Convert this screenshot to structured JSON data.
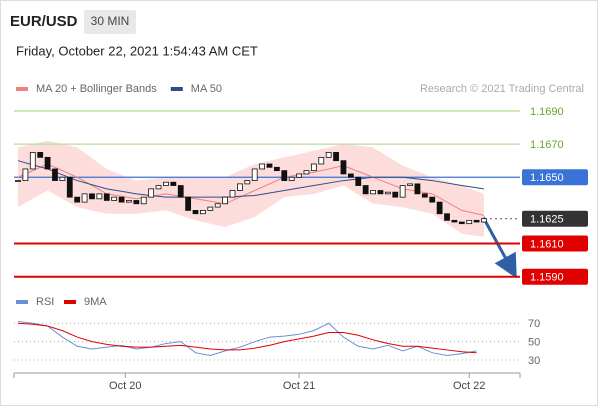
{
  "header": {
    "symbol": "EUR/USD",
    "timeframe": "30 MIN",
    "datetime": "Friday, October 22, 2021 1:54:43 AM CET",
    "credit": "Research © 2021 Trading Central"
  },
  "chart_data": [
    {
      "type": "candlestick",
      "legend": [
        {
          "name": "MA 20 + Bollinger Bands",
          "color": "#f08080"
        },
        {
          "name": "MA 50",
          "color": "#2b4f8c"
        }
      ],
      "ylim": [
        1.1585,
        1.1696
      ],
      "xlim": [
        0,
        63
      ],
      "xticks": [
        {
          "value": 14.5,
          "label": "Oct 20"
        },
        {
          "value": 38,
          "label": "Oct 21"
        },
        {
          "value": 61,
          "label": "Oct 22"
        }
      ],
      "closes": [
        1.1648,
        1.1655,
        1.1665,
        1.1662,
        1.1655,
        1.1648,
        1.165,
        1.1638,
        1.1635,
        1.164,
        1.1637,
        1.164,
        1.1636,
        1.1638,
        1.1635,
        1.1636,
        1.1634,
        1.1638,
        1.1643,
        1.1645,
        1.1647,
        1.1645,
        1.1638,
        1.163,
        1.1628,
        1.163,
        1.1632,
        1.1634,
        1.1638,
        1.1642,
        1.1646,
        1.1648,
        1.1655,
        1.1658,
        1.1656,
        1.1654,
        1.1648,
        1.165,
        1.1652,
        1.1654,
        1.1658,
        1.1662,
        1.1665,
        1.166,
        1.1652,
        1.165,
        1.1645,
        1.164,
        1.1642,
        1.164,
        1.1641,
        1.1638,
        1.1645,
        1.1646,
        1.164,
        1.1638,
        1.1635,
        1.1628,
        1.1624,
        1.1623,
        1.1622,
        1.1624,
        1.1623,
        1.1625
      ],
      "band_x": [
        0,
        4,
        8,
        12,
        16,
        20,
        24,
        28,
        32,
        36,
        40,
        44,
        48,
        52,
        56,
        60,
        63
      ],
      "band_upper": [
        1.1668,
        1.1672,
        1.1668,
        1.1655,
        1.1648,
        1.165,
        1.165,
        1.165,
        1.1658,
        1.1662,
        1.1666,
        1.167,
        1.1668,
        1.1657,
        1.165,
        1.1645,
        1.164
      ],
      "band_lower": [
        1.1632,
        1.1642,
        1.1632,
        1.1628,
        1.1628,
        1.163,
        1.1624,
        1.162,
        1.1626,
        1.1638,
        1.164,
        1.1645,
        1.1634,
        1.1632,
        1.1628,
        1.1616,
        1.1614
      ],
      "ma20": [
        1.165,
        1.1658,
        1.165,
        1.164,
        1.1637,
        1.164,
        1.1637,
        1.1634,
        1.1642,
        1.165,
        1.1653,
        1.1657,
        1.165,
        1.1643,
        1.164,
        1.163,
        1.1627
      ],
      "ma50": [
        1.166,
        1.1655,
        1.1648,
        1.1643,
        1.164,
        1.1638,
        1.1638,
        1.1638,
        1.1639,
        1.1642,
        1.1645,
        1.1648,
        1.165,
        1.165,
        1.1648,
        1.1645,
        1.1643
      ],
      "levels": [
        {
          "value": 1.169,
          "label": "1.1690",
          "color": "#6aa32e",
          "line": "#b9dc9e",
          "box": false
        },
        {
          "value": 1.167,
          "label": "1.1670",
          "color": "#6aa32e",
          "line": "#b9dc9e",
          "box": false
        },
        {
          "value": 1.165,
          "label": "1.1650",
          "color": "#3a73d6",
          "line": "#3a73d6",
          "box": true
        },
        {
          "value": 1.1625,
          "label": "1.1625",
          "color": "#333333",
          "line": "dotted",
          "box": true
        },
        {
          "value": 1.161,
          "label": "1.1610",
          "color": "#e00000",
          "line": "#e00000",
          "box": true
        },
        {
          "value": 1.159,
          "label": "1.1590",
          "color": "#e00000",
          "line": "#e00000",
          "box": true
        }
      ]
    },
    {
      "type": "line",
      "ylim": [
        17,
        79
      ],
      "yticks": [
        70,
        50,
        30
      ],
      "x": [
        0,
        2,
        4,
        6,
        8,
        10,
        12,
        14,
        16,
        18,
        20,
        22,
        24,
        26,
        28,
        30,
        32,
        34,
        36,
        38,
        40,
        42,
        44,
        46,
        48,
        50,
        52,
        54,
        56,
        58,
        60,
        62
      ],
      "series": [
        {
          "name": "RSI",
          "color": "#6b8fd8",
          "values": [
            72,
            70,
            67,
            55,
            45,
            42,
            44,
            46,
            42,
            44,
            48,
            50,
            38,
            35,
            40,
            44,
            50,
            55,
            56,
            58,
            62,
            70,
            55,
            45,
            42,
            46,
            40,
            45,
            38,
            35,
            37,
            40
          ]
        },
        {
          "name": "9MA",
          "color": "#e00000",
          "values": [
            70,
            69,
            67,
            62,
            55,
            50,
            47,
            45,
            44,
            44,
            45,
            46,
            44,
            42,
            41,
            41,
            43,
            46,
            50,
            53,
            56,
            60,
            60,
            57,
            52,
            48,
            45,
            45,
            43,
            41,
            39,
            38
          ]
        }
      ]
    }
  ]
}
